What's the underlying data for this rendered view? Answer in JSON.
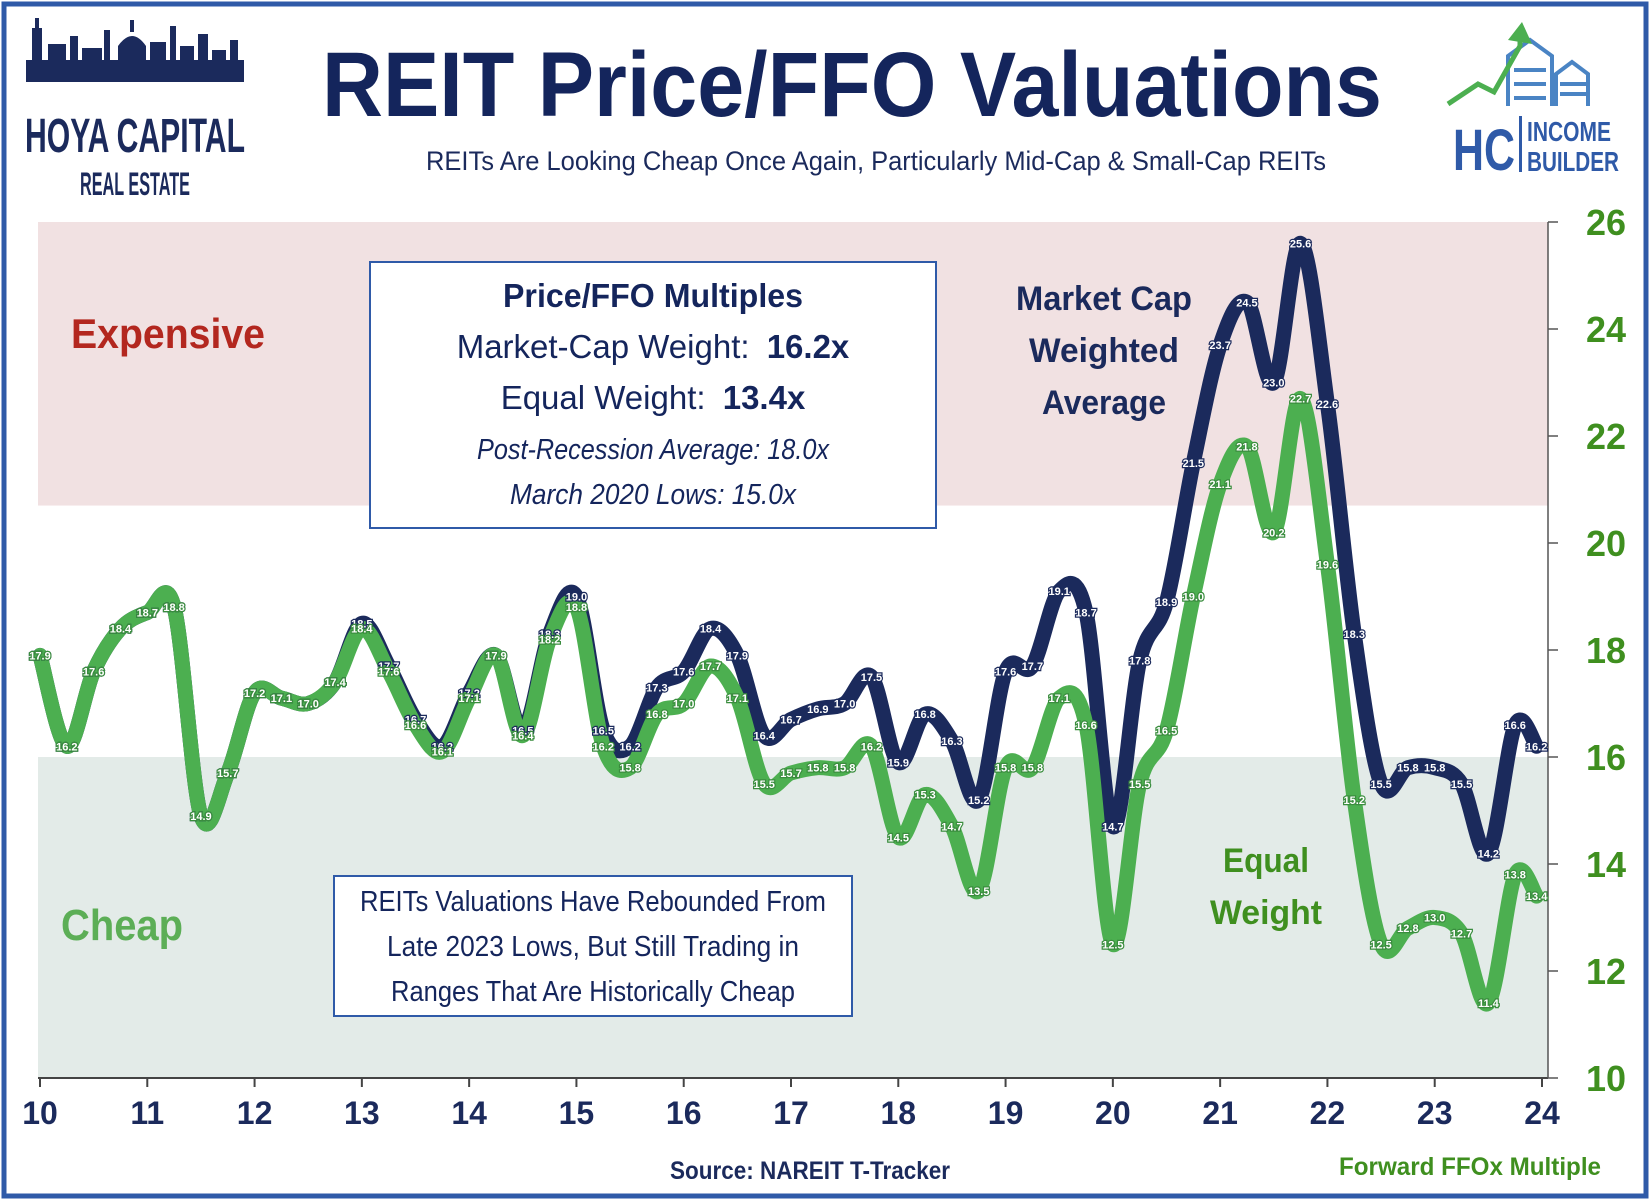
{
  "header": {
    "title": "REIT Price/FFO Valuations",
    "subtitle": "REITs Are Looking Cheap Once Again, Particularly Mid-Cap & Small-Cap REITs"
  },
  "logo_left": {
    "line1": "HOYA CAPITAL",
    "line2": "REAL ESTATE"
  },
  "logo_right": {
    "initials": "HC",
    "line1": "INCOME",
    "line2": "BUILDER"
  },
  "zones": {
    "expensive": "Expensive",
    "cheap": "Cheap"
  },
  "info_box": {
    "heading": "Price/FFO Multiples",
    "mc_label": "Market-Cap Weight:",
    "mc_value": "16.2x",
    "ew_label": "Equal Weight:",
    "ew_value": "13.4x",
    "post_recession": "Post-Recession Average: 18.0x",
    "march_2020": "March 2020 Lows: 15.0x"
  },
  "note_box": {
    "line1": "REITs Valuations Have Rebounded From",
    "line2": "Late 2023 Lows, But Still Trading in",
    "line3": "Ranges That Are Historically Cheap"
  },
  "series_labels": {
    "market_cap": [
      "Market Cap",
      "Weighted",
      "Average"
    ],
    "equal_weight": [
      "Equal",
      "Weight"
    ]
  },
  "footer": {
    "source": "Source: NAREIT T-Tracker",
    "axis_note": "Forward FFOx Multiple"
  },
  "colors": {
    "market_cap": "#1b2a5c",
    "equal_weight": "#4caf50",
    "expensive_zone": "#f1e1e2",
    "cheap_zone": "#e3ebe8",
    "title": "#14255c",
    "expensive_text": "#b3271f",
    "cheap_text": "#5cae56",
    "axis_green": "#3f8f1f"
  },
  "chart_data": {
    "type": "line",
    "xlim": [
      10,
      24
    ],
    "ylim": [
      10,
      26
    ],
    "x_ticks": [
      "10",
      "11",
      "12",
      "13",
      "14",
      "15",
      "16",
      "17",
      "18",
      "19",
      "20",
      "21",
      "22",
      "23",
      "24"
    ],
    "y_ticks": [
      "10",
      "12",
      "14",
      "16",
      "18",
      "20",
      "22",
      "24",
      "26"
    ],
    "y_axis_position": "right",
    "zones": {
      "expensive": [
        20.7,
        26
      ],
      "cheap": [
        10,
        16
      ]
    },
    "series": [
      {
        "key": "equal_weight",
        "x": [
          10.0,
          10.25,
          10.5,
          10.75,
          11.0,
          11.25,
          11.5,
          11.75,
          12.0,
          12.25,
          12.5,
          12.75,
          13.0,
          13.25,
          13.5,
          13.75,
          14.0,
          14.25,
          14.5,
          14.75,
          15.0,
          15.25,
          15.5,
          15.75,
          16.0,
          16.25,
          16.5,
          16.75,
          17.0,
          17.25,
          17.5,
          17.75,
          18.0,
          18.25,
          18.5,
          18.75,
          19.0,
          19.25,
          19.5,
          19.75,
          20.0,
          20.25,
          20.5,
          20.75,
          21.0,
          21.25,
          21.5,
          21.75,
          22.0,
          22.25,
          22.5,
          22.75,
          23.0,
          23.25,
          23.5,
          23.75,
          23.95
        ],
        "y": [
          17.9,
          16.2,
          17.6,
          18.4,
          18.7,
          18.8,
          14.9,
          15.7,
          17.2,
          17.1,
          17.0,
          17.4,
          18.4,
          17.6,
          16.6,
          16.1,
          17.1,
          17.9,
          16.4,
          18.2,
          18.8,
          16.2,
          15.8,
          16.8,
          17.0,
          17.7,
          17.1,
          15.5,
          15.7,
          15.8,
          15.8,
          16.2,
          14.5,
          15.3,
          14.7,
          13.5,
          15.8,
          15.8,
          17.1,
          16.6,
          12.5,
          15.5,
          16.5,
          19.0,
          21.1,
          21.8,
          20.2,
          22.7,
          19.6,
          15.2,
          12.5,
          12.8,
          13.0,
          12.7,
          11.4,
          13.8,
          13.4
        ]
      },
      {
        "key": "market_cap",
        "x": [
          10.0,
          10.25,
          10.5,
          10.75,
          11.0,
          11.25,
          11.5,
          11.75,
          12.0,
          12.25,
          12.5,
          12.75,
          13.0,
          13.25,
          13.5,
          13.75,
          14.0,
          14.25,
          14.5,
          14.75,
          15.0,
          15.25,
          15.5,
          15.75,
          16.0,
          16.25,
          16.5,
          16.75,
          17.0,
          17.25,
          17.5,
          17.75,
          18.0,
          18.25,
          18.5,
          18.75,
          19.0,
          19.25,
          19.5,
          19.75,
          20.0,
          20.25,
          20.5,
          20.75,
          21.0,
          21.25,
          21.5,
          21.75,
          22.0,
          22.25,
          22.5,
          22.75,
          23.0,
          23.25,
          23.5,
          23.75,
          23.95
        ],
        "y": [
          17.9,
          16.2,
          17.6,
          18.4,
          18.7,
          18.8,
          14.9,
          15.7,
          17.2,
          17.1,
          17.0,
          17.4,
          18.5,
          17.7,
          16.7,
          16.2,
          17.2,
          17.9,
          16.5,
          18.3,
          19.0,
          16.5,
          16.2,
          17.3,
          17.6,
          18.4,
          17.9,
          16.4,
          16.7,
          16.9,
          17.0,
          17.5,
          15.9,
          16.8,
          16.3,
          15.2,
          17.6,
          17.7,
          19.1,
          18.7,
          14.7,
          17.8,
          18.9,
          21.5,
          23.7,
          24.5,
          23.0,
          25.6,
          22.6,
          18.3,
          15.5,
          15.8,
          15.8,
          15.5,
          14.2,
          16.6,
          16.2
        ]
      }
    ]
  }
}
